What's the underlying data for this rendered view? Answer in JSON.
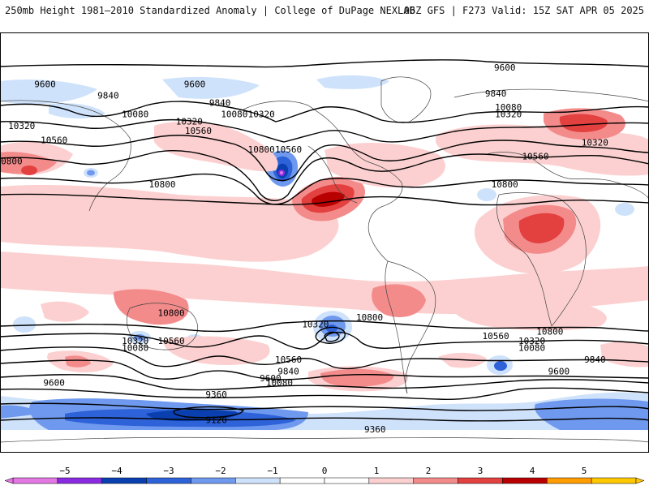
{
  "header": {
    "left_title": "250mb Height 1981–2010 Standardized Anomaly | College of DuPage NEXLAB",
    "right_title": "06Z GFS | F273 Valid: 15Z SAT APR 05 2025"
  },
  "map": {
    "projection": "global-cylindrical",
    "contour_labels": [
      {
        "text": "9600",
        "lat": 75,
        "lon": 100
      },
      {
        "text": "9600",
        "lat": 68,
        "lon": -155
      },
      {
        "text": "9600",
        "lat": 68,
        "lon": -72
      },
      {
        "text": "9840",
        "lat": 63,
        "lon": -120
      },
      {
        "text": "9840",
        "lat": 60,
        "lon": -58
      },
      {
        "text": "9840",
        "lat": 64,
        "lon": 95
      },
      {
        "text": "10080",
        "lat": 55,
        "lon": -105
      },
      {
        "text": "10080",
        "lat": 55,
        "lon": -50
      },
      {
        "text": "10080",
        "lat": 58,
        "lon": 102
      },
      {
        "text": "10320",
        "lat": 50,
        "lon": -168
      },
      {
        "text": "10320",
        "lat": 52,
        "lon": -75
      },
      {
        "text": "10320",
        "lat": 55,
        "lon": -35
      },
      {
        "text": "10320",
        "lat": 55,
        "lon": 102
      },
      {
        "text": "10320",
        "lat": 43,
        "lon": 150
      },
      {
        "text": "10560",
        "lat": 44,
        "lon": -150
      },
      {
        "text": "10560",
        "lat": 48,
        "lon": -70
      },
      {
        "text": "10560",
        "lat": 40,
        "lon": -20
      },
      {
        "text": "10560",
        "lat": 37,
        "lon": 117
      },
      {
        "text": "10800",
        "lat": 40,
        "lon": -35
      },
      {
        "text": "10800",
        "lat": 35,
        "lon": -175
      },
      {
        "text": "10800",
        "lat": 25,
        "lon": -90
      },
      {
        "text": "10800",
        "lat": 25,
        "lon": 100
      },
      {
        "text": "10800",
        "lat": -30,
        "lon": -85
      },
      {
        "text": "10800",
        "lat": -32,
        "lon": 25
      },
      {
        "text": "10800",
        "lat": -38,
        "lon": 125
      },
      {
        "text": "10560",
        "lat": -42,
        "lon": -85
      },
      {
        "text": "10560",
        "lat": -40,
        "lon": 95
      },
      {
        "text": "10560",
        "lat": -50,
        "lon": -20
      },
      {
        "text": "10320",
        "lat": -42,
        "lon": -105
      },
      {
        "text": "10320",
        "lat": -35,
        "lon": -5
      },
      {
        "text": "10320",
        "lat": -42,
        "lon": 115
      },
      {
        "text": "10080",
        "lat": -45,
        "lon": -105
      },
      {
        "text": "10080",
        "lat": -45,
        "lon": 115
      },
      {
        "text": "10080",
        "lat": -60,
        "lon": -25
      },
      {
        "text": "9840",
        "lat": -55,
        "lon": -20
      },
      {
        "text": "9840",
        "lat": -50,
        "lon": 150
      },
      {
        "text": "9600",
        "lat": -55,
        "lon": 130
      },
      {
        "text": "9600",
        "lat": -58,
        "lon": -30
      },
      {
        "text": "9600",
        "lat": -60,
        "lon": -150
      },
      {
        "text": "9360",
        "lat": -65,
        "lon": -60
      },
      {
        "text": "9360",
        "lat": -80,
        "lon": 28
      },
      {
        "text": "9120",
        "lat": -76,
        "lon": -60
      }
    ]
  },
  "legend": {
    "ticks": [
      "−5",
      "−4",
      "−3",
      "−2",
      "−1",
      "0",
      "1",
      "2",
      "3",
      "4",
      "5"
    ],
    "colors": [
      "#e377e3",
      "#8a2be2",
      "#0a3fb0",
      "#2e62d9",
      "#6f99ee",
      "#cfe2fb",
      "#ffffff",
      "#ffffff",
      "#fcd0d0",
      "#f48b8b",
      "#e34040",
      "#b80000",
      "#ff9c00",
      "#ffc800"
    ]
  }
}
